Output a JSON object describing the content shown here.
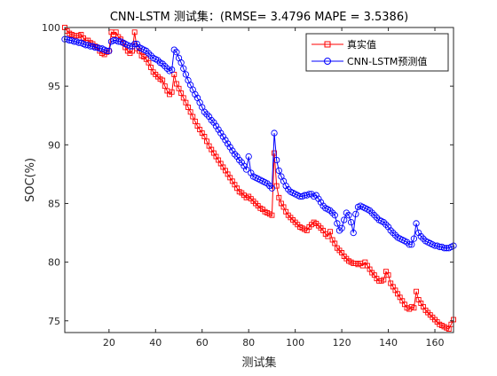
{
  "chart_data": {
    "type": "line",
    "title": "CNN-LSTM 测试集：(RMSE= 3.4796 MAPE  = 3.5386)",
    "xlabel": "测试集",
    "ylabel": "SOC(%)",
    "xlim": [
      1,
      168
    ],
    "ylim": [
      74,
      100
    ],
    "xticks": [
      20,
      40,
      60,
      80,
      100,
      120,
      140,
      160
    ],
    "yticks": [
      75,
      80,
      85,
      90,
      95,
      100
    ],
    "grid": false,
    "legend_position": "top-right",
    "x": [
      1,
      2,
      3,
      4,
      5,
      6,
      7,
      8,
      9,
      10,
      11,
      12,
      13,
      14,
      15,
      16,
      17,
      18,
      19,
      20,
      21,
      22,
      23,
      24,
      25,
      26,
      27,
      28,
      29,
      30,
      31,
      32,
      33,
      34,
      35,
      36,
      37,
      38,
      39,
      40,
      41,
      42,
      43,
      44,
      45,
      46,
      47,
      48,
      49,
      50,
      51,
      52,
      53,
      54,
      55,
      56,
      57,
      58,
      59,
      60,
      61,
      62,
      63,
      64,
      65,
      66,
      67,
      68,
      69,
      70,
      71,
      72,
      73,
      74,
      75,
      76,
      77,
      78,
      79,
      80,
      81,
      82,
      83,
      84,
      85,
      86,
      87,
      88,
      89,
      90,
      91,
      92,
      93,
      94,
      95,
      96,
      97,
      98,
      99,
      100,
      101,
      102,
      103,
      104,
      105,
      106,
      107,
      108,
      109,
      110,
      111,
      112,
      113,
      114,
      115,
      116,
      117,
      118,
      119,
      120,
      121,
      122,
      123,
      124,
      125,
      126,
      127,
      128,
      129,
      130,
      131,
      132,
      133,
      134,
      135,
      136,
      137,
      138,
      139,
      140,
      141,
      142,
      143,
      144,
      145,
      146,
      147,
      148,
      149,
      150,
      151,
      152,
      153,
      154,
      155,
      156,
      157,
      158,
      159,
      160,
      161,
      162,
      163,
      164,
      165,
      166,
      167,
      168
    ],
    "series": [
      {
        "name": "真实值",
        "color": "#ff0000",
        "marker": "square",
        "values": [
          100.0,
          99.7,
          99.5,
          99.4,
          99.3,
          99.3,
          99.3,
          99.4,
          99.1,
          98.9,
          98.9,
          98.7,
          98.6,
          98.4,
          98.3,
          98.0,
          97.8,
          97.7,
          97.9,
          98.0,
          99.6,
          99.4,
          99.6,
          99.2,
          99.0,
          98.7,
          98.3,
          98.0,
          97.8,
          98.0,
          99.6,
          98.2,
          98.0,
          97.6,
          97.5,
          97.3,
          97.0,
          96.6,
          96.2,
          96.0,
          95.8,
          95.6,
          95.5,
          95.0,
          94.6,
          94.3,
          94.5,
          96.0,
          95.2,
          94.8,
          94.4,
          94.0,
          93.6,
          93.2,
          92.8,
          92.4,
          92.0,
          91.6,
          91.3,
          91.0,
          90.7,
          90.3,
          89.9,
          89.6,
          89.3,
          89.0,
          88.7,
          88.4,
          88.1,
          87.8,
          87.5,
          87.2,
          86.9,
          86.6,
          86.3,
          86.0,
          85.9,
          85.7,
          85.5,
          85.6,
          85.4,
          85.2,
          85.0,
          84.8,
          84.6,
          84.5,
          84.3,
          84.2,
          84.1,
          84.0,
          89.3,
          86.5,
          85.5,
          85.0,
          84.7,
          84.3,
          84.0,
          83.8,
          83.6,
          83.4,
          83.2,
          83.0,
          82.9,
          82.8,
          82.7,
          83.0,
          83.2,
          83.4,
          83.3,
          83.1,
          82.9,
          82.7,
          82.4,
          82.2,
          82.6,
          81.9,
          81.6,
          81.2,
          81.0,
          80.8,
          80.5,
          80.3,
          80.1,
          80.0,
          79.9,
          79.9,
          79.8,
          79.9,
          79.7,
          80.0,
          79.7,
          79.4,
          79.1,
          78.9,
          78.6,
          78.4,
          78.4,
          78.5,
          79.2,
          78.9,
          78.2,
          77.9,
          77.6,
          77.3,
          77.0,
          76.7,
          76.4,
          76.1,
          76.0,
          76.2,
          76.1,
          77.5,
          76.8,
          76.5,
          76.2,
          75.9,
          75.7,
          75.5,
          75.3,
          75.1,
          74.9,
          74.7,
          74.6,
          74.5,
          74.4,
          74.3,
          74.7,
          75.1
        ]
      },
      {
        "name": "CNN-LSTM预测值",
        "color": "#0000ff",
        "marker": "circle",
        "values": [
          99.0,
          99.0,
          98.9,
          98.9,
          98.8,
          98.8,
          98.7,
          98.7,
          98.6,
          98.5,
          98.5,
          98.4,
          98.4,
          98.3,
          98.3,
          98.2,
          98.2,
          98.1,
          98.0,
          98.0,
          98.8,
          98.9,
          98.9,
          98.8,
          98.8,
          98.7,
          98.6,
          98.5,
          98.4,
          98.4,
          98.6,
          98.6,
          98.3,
          98.2,
          98.1,
          98.0,
          97.8,
          97.6,
          97.4,
          97.3,
          97.2,
          97.0,
          96.9,
          96.7,
          96.5,
          96.3,
          96.4,
          98.1,
          97.9,
          97.4,
          97.0,
          96.5,
          96.0,
          95.5,
          95.1,
          94.7,
          94.3,
          94.0,
          93.6,
          93.2,
          92.8,
          92.6,
          92.4,
          92.1,
          91.9,
          91.6,
          91.3,
          91.0,
          90.7,
          90.4,
          90.1,
          89.8,
          89.5,
          89.2,
          89.0,
          88.7,
          88.5,
          88.2,
          87.9,
          89.0,
          87.6,
          87.3,
          87.2,
          87.1,
          87.0,
          86.9,
          86.8,
          86.7,
          86.5,
          86.3,
          91.0,
          88.7,
          87.8,
          87.3,
          86.9,
          86.5,
          86.2,
          86.0,
          85.9,
          85.8,
          85.7,
          85.6,
          85.6,
          85.7,
          85.7,
          85.8,
          85.8,
          85.6,
          85.7,
          85.4,
          85.1,
          84.8,
          84.6,
          84.5,
          84.4,
          84.2,
          84.0,
          83.3,
          82.7,
          82.9,
          83.6,
          84.2,
          84.0,
          83.4,
          82.5,
          84.1,
          84.7,
          84.8,
          84.7,
          84.6,
          84.5,
          84.4,
          84.2,
          84.0,
          83.8,
          83.6,
          83.5,
          83.4,
          83.2,
          83.0,
          82.7,
          82.5,
          82.3,
          82.1,
          82.0,
          81.9,
          81.8,
          81.7,
          81.5,
          81.5,
          82.0,
          83.3,
          82.5,
          82.2,
          82.0,
          81.8,
          81.7,
          81.6,
          81.5,
          81.4,
          81.4,
          81.3,
          81.3,
          81.2,
          81.2,
          81.2,
          81.3,
          81.4
        ]
      }
    ]
  }
}
